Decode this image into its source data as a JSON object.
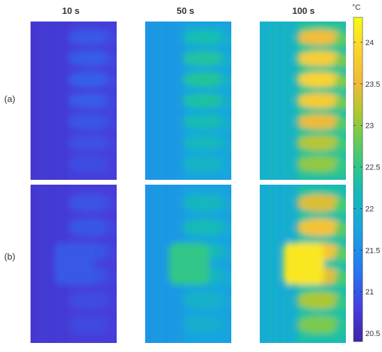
{
  "chart_data": {
    "type": "heatmap",
    "unit": "°C",
    "columns": [
      "10 s",
      "50 s",
      "100 s"
    ],
    "rows": [
      "(a)",
      "(b)"
    ],
    "colorbar": {
      "min": 20.4,
      "max": 24.3,
      "ticks": [
        "20.5",
        "21",
        "21.5",
        "22",
        "22.5",
        "23",
        "23.5",
        "24"
      ],
      "colormap": "parula"
    },
    "panels": [
      {
        "row": "(a)",
        "column": "10 s",
        "base": 20.7,
        "right_min": 20.9,
        "right_max": 21.05,
        "rows_count": 7,
        "hot_block": null
      },
      {
        "row": "(a)",
        "column": "50 s",
        "base": 21.6,
        "right_min": 22.0,
        "right_max": 22.4,
        "rows_count": 7,
        "hot_block": null
      },
      {
        "row": "(a)",
        "column": "100 s",
        "base": 22.0,
        "right_min": 22.9,
        "right_max": 23.9,
        "rows_count": 7,
        "hot_block": null
      },
      {
        "row": "(b)",
        "column": "10 s",
        "base": 20.7,
        "right_min": 20.85,
        "right_max": 21.0,
        "rows_count": 6,
        "hot_block": 21.0
      },
      {
        "row": "(b)",
        "column": "50 s",
        "base": 21.6,
        "right_min": 21.9,
        "right_max": 22.2,
        "rows_count": 6,
        "hot_block": 22.5
      },
      {
        "row": "(b)",
        "column": "100 s",
        "base": 21.9,
        "right_min": 22.8,
        "right_max": 23.7,
        "rows_count": 6,
        "hot_block": 24.1
      }
    ]
  }
}
